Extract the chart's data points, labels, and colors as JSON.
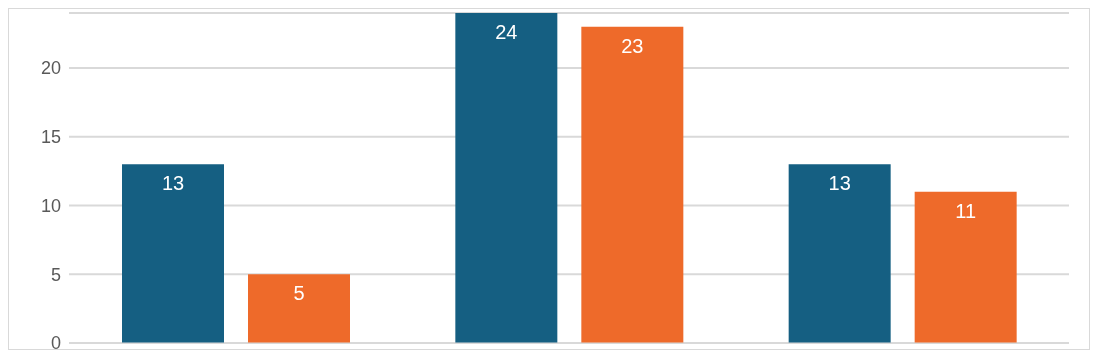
{
  "chart_data": {
    "type": "bar",
    "categories": [
      null,
      null,
      null
    ],
    "series": [
      {
        "color": "#155f82",
        "values": [
          13,
          24,
          13
        ]
      },
      {
        "color": "#ee6a2a",
        "values": [
          5,
          23,
          11
        ]
      }
    ],
    "ylim": [
      0,
      24
    ],
    "yticks": [
      0,
      5,
      10,
      15,
      20
    ],
    "grid": "y",
    "data_labels": true,
    "legend": false
  }
}
